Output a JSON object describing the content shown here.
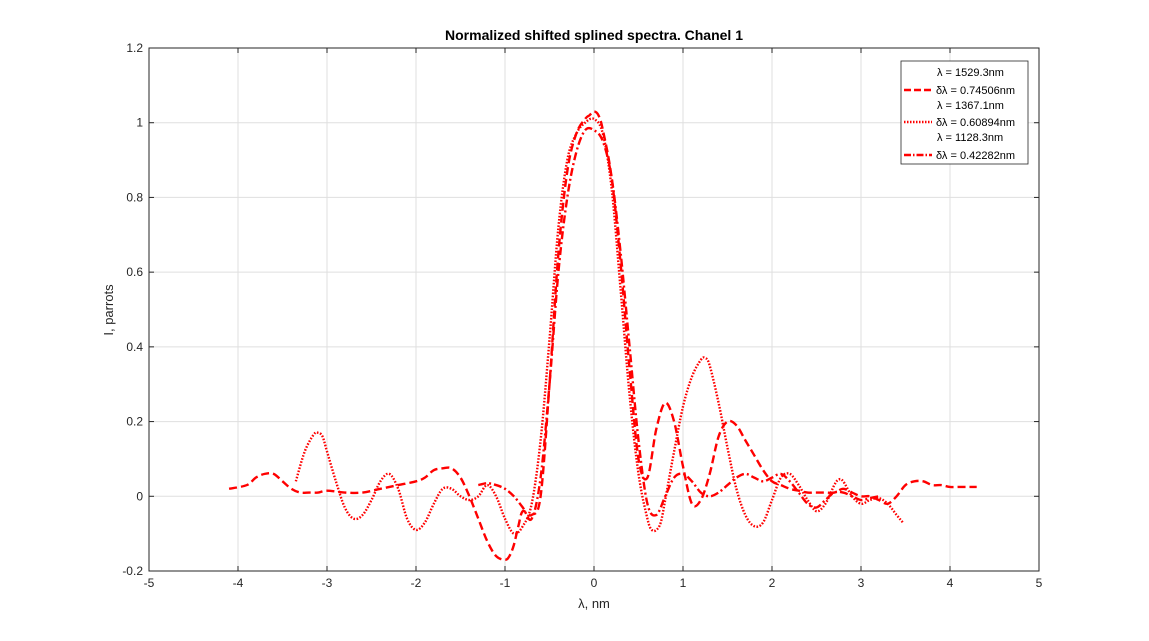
{
  "chart_data": {
    "type": "line",
    "title": "Normalized shifted splined spectra. Chanel 1",
    "xlabel": "λ, nm",
    "ylabel": "I, parrots",
    "xlim": [
      -5,
      5
    ],
    "ylim": [
      -0.2,
      1.2
    ],
    "xticks": [
      -5,
      -4,
      -3,
      -2,
      -1,
      0,
      1,
      2,
      3,
      4,
      5
    ],
    "yticks": [
      -0.2,
      0,
      0.2,
      0.4,
      0.6,
      0.8,
      1,
      1.2
    ],
    "xtick_labels": [
      "-5",
      "-4",
      "-3",
      "-2",
      "-1",
      "0",
      "1",
      "2",
      "3",
      "4",
      "5"
    ],
    "ytick_labels": [
      "-0.2",
      "0",
      "0.2",
      "0.4",
      "0.6",
      "0.8",
      "1",
      "1.2"
    ],
    "grid": true,
    "legend_position": "top-right",
    "color": "#ff0000",
    "legend": [
      {
        "line1": "λ = 1529.3nm",
        "line2": "δλ = 0.74506nm",
        "style": "dashed"
      },
      {
        "line1": "λ = 1367.1nm",
        "line2": "δλ = 0.60894nm",
        "style": "dotted"
      },
      {
        "line1": "λ = 1128.3nm",
        "line2": "δλ = 0.42282nm",
        "style": "dashdot"
      }
    ],
    "series": [
      {
        "style": "dashed",
        "x": [
          -4.1,
          -3.9,
          -3.8,
          -3.7,
          -3.6,
          -3.5,
          -3.4,
          -3.3,
          -3.2,
          -3.1,
          -3.0,
          -2.8,
          -2.6,
          -2.4,
          -2.2,
          -2.0,
          -1.9,
          -1.8,
          -1.7,
          -1.6,
          -1.5,
          -1.4,
          -1.3,
          -1.2,
          -1.1,
          -1.0,
          -0.95,
          -0.9,
          -0.85,
          -0.8,
          -0.7,
          -0.6,
          -0.5,
          -0.4,
          -0.3,
          -0.2,
          -0.1,
          -0.05,
          0.0,
          0.05,
          0.1,
          0.2,
          0.3,
          0.4,
          0.5,
          0.6,
          0.7,
          0.8,
          0.9,
          1.0,
          1.1,
          1.2,
          1.3,
          1.4,
          1.5,
          1.6,
          1.7,
          1.8,
          1.9,
          2.0,
          2.1,
          2.2,
          2.3,
          2.4,
          2.5,
          2.6,
          2.7,
          2.8,
          2.9,
          3.0,
          3.1,
          3.2,
          3.3,
          3.4,
          3.5,
          3.6,
          3.7,
          3.8,
          3.9,
          4.0,
          4.1,
          4.2,
          4.3
        ],
        "y": [
          0.02,
          0.03,
          0.05,
          0.06,
          0.06,
          0.04,
          0.02,
          0.01,
          0.01,
          0.01,
          0.015,
          0.01,
          0.01,
          0.02,
          0.03,
          0.04,
          0.05,
          0.07,
          0.075,
          0.075,
          0.05,
          0.0,
          -0.06,
          -0.12,
          -0.16,
          -0.17,
          -0.16,
          -0.13,
          -0.08,
          -0.04,
          -0.05,
          0.0,
          0.3,
          0.65,
          0.87,
          0.97,
          1.01,
          1.02,
          1.03,
          1.02,
          0.98,
          0.85,
          0.62,
          0.34,
          0.1,
          0.05,
          0.18,
          0.25,
          0.2,
          0.08,
          -0.02,
          -0.01,
          0.06,
          0.16,
          0.2,
          0.19,
          0.15,
          0.11,
          0.07,
          0.04,
          0.03,
          0.02,
          0.015,
          0.01,
          0.01,
          0.01,
          0.01,
          0.02,
          0.01,
          0.0,
          0.0,
          -0.01,
          -0.02,
          0.0,
          0.03,
          0.04,
          0.04,
          0.03,
          0.03,
          0.025,
          0.025,
          0.025,
          0.025
        ]
      },
      {
        "style": "dotted",
        "x": [
          -3.35,
          -3.25,
          -3.15,
          -3.1,
          -3.05,
          -3.0,
          -2.9,
          -2.8,
          -2.7,
          -2.6,
          -2.5,
          -2.4,
          -2.3,
          -2.2,
          -2.1,
          -2.0,
          -1.9,
          -1.8,
          -1.7,
          -1.6,
          -1.5,
          -1.4,
          -1.3,
          -1.2,
          -1.1,
          -1.0,
          -0.9,
          -0.8,
          -0.7,
          -0.6,
          -0.5,
          -0.4,
          -0.3,
          -0.2,
          -0.1,
          0.0,
          0.1,
          0.2,
          0.3,
          0.4,
          0.5,
          0.6,
          0.65,
          0.7,
          0.75,
          0.8,
          0.9,
          1.0,
          1.1,
          1.2,
          1.25,
          1.3,
          1.4,
          1.5,
          1.6,
          1.7,
          1.8,
          1.9,
          2.0,
          2.1,
          2.2,
          2.3,
          2.4,
          2.5,
          2.6,
          2.7,
          2.75,
          2.8,
          2.9,
          3.0,
          3.1,
          3.2,
          3.3,
          3.4,
          3.47
        ],
        "y": [
          0.04,
          0.12,
          0.165,
          0.17,
          0.16,
          0.12,
          0.04,
          -0.03,
          -0.06,
          -0.05,
          -0.01,
          0.04,
          0.06,
          0.02,
          -0.06,
          -0.09,
          -0.07,
          -0.02,
          0.02,
          0.02,
          0.0,
          -0.01,
          0.0,
          0.03,
          0.0,
          -0.06,
          -0.1,
          -0.08,
          -0.02,
          0.15,
          0.42,
          0.72,
          0.9,
          0.97,
          1.0,
          1.01,
          0.97,
          0.82,
          0.55,
          0.27,
          0.06,
          -0.06,
          -0.09,
          -0.09,
          -0.07,
          -0.01,
          0.12,
          0.24,
          0.32,
          0.365,
          0.37,
          0.35,
          0.25,
          0.13,
          0.02,
          -0.05,
          -0.08,
          -0.07,
          -0.01,
          0.05,
          0.06,
          0.03,
          -0.01,
          -0.04,
          -0.02,
          0.03,
          0.045,
          0.04,
          0.0,
          -0.02,
          -0.01,
          -0.005,
          -0.02,
          -0.05,
          -0.07
        ]
      },
      {
        "style": "dashdot",
        "x": [
          -1.3,
          -1.2,
          -1.1,
          -1.0,
          -0.9,
          -0.8,
          -0.7,
          -0.6,
          -0.5,
          -0.4,
          -0.3,
          -0.2,
          -0.1,
          0.0,
          0.1,
          0.2,
          0.3,
          0.4,
          0.5,
          0.6,
          0.7,
          0.8,
          0.9,
          1.0,
          1.1,
          1.2,
          1.3,
          1.4,
          1.5,
          1.6,
          1.7,
          1.8,
          1.9,
          2.0,
          2.1,
          2.2,
          2.3,
          2.4,
          2.5,
          2.6,
          2.7,
          2.8,
          2.9,
          3.0,
          3.1,
          3.2
        ],
        "y": [
          0.03,
          0.035,
          0.03,
          0.02,
          0.0,
          -0.03,
          -0.06,
          0.05,
          0.3,
          0.6,
          0.8,
          0.92,
          0.98,
          0.98,
          0.95,
          0.85,
          0.65,
          0.4,
          0.15,
          -0.02,
          -0.05,
          0.0,
          0.05,
          0.06,
          0.04,
          0.01,
          0.0,
          0.01,
          0.03,
          0.05,
          0.06,
          0.05,
          0.04,
          0.05,
          0.06,
          0.04,
          0.01,
          -0.02,
          -0.03,
          -0.01,
          0.01,
          0.01,
          0.0,
          -0.01,
          -0.005,
          0.0
        ]
      }
    ]
  }
}
